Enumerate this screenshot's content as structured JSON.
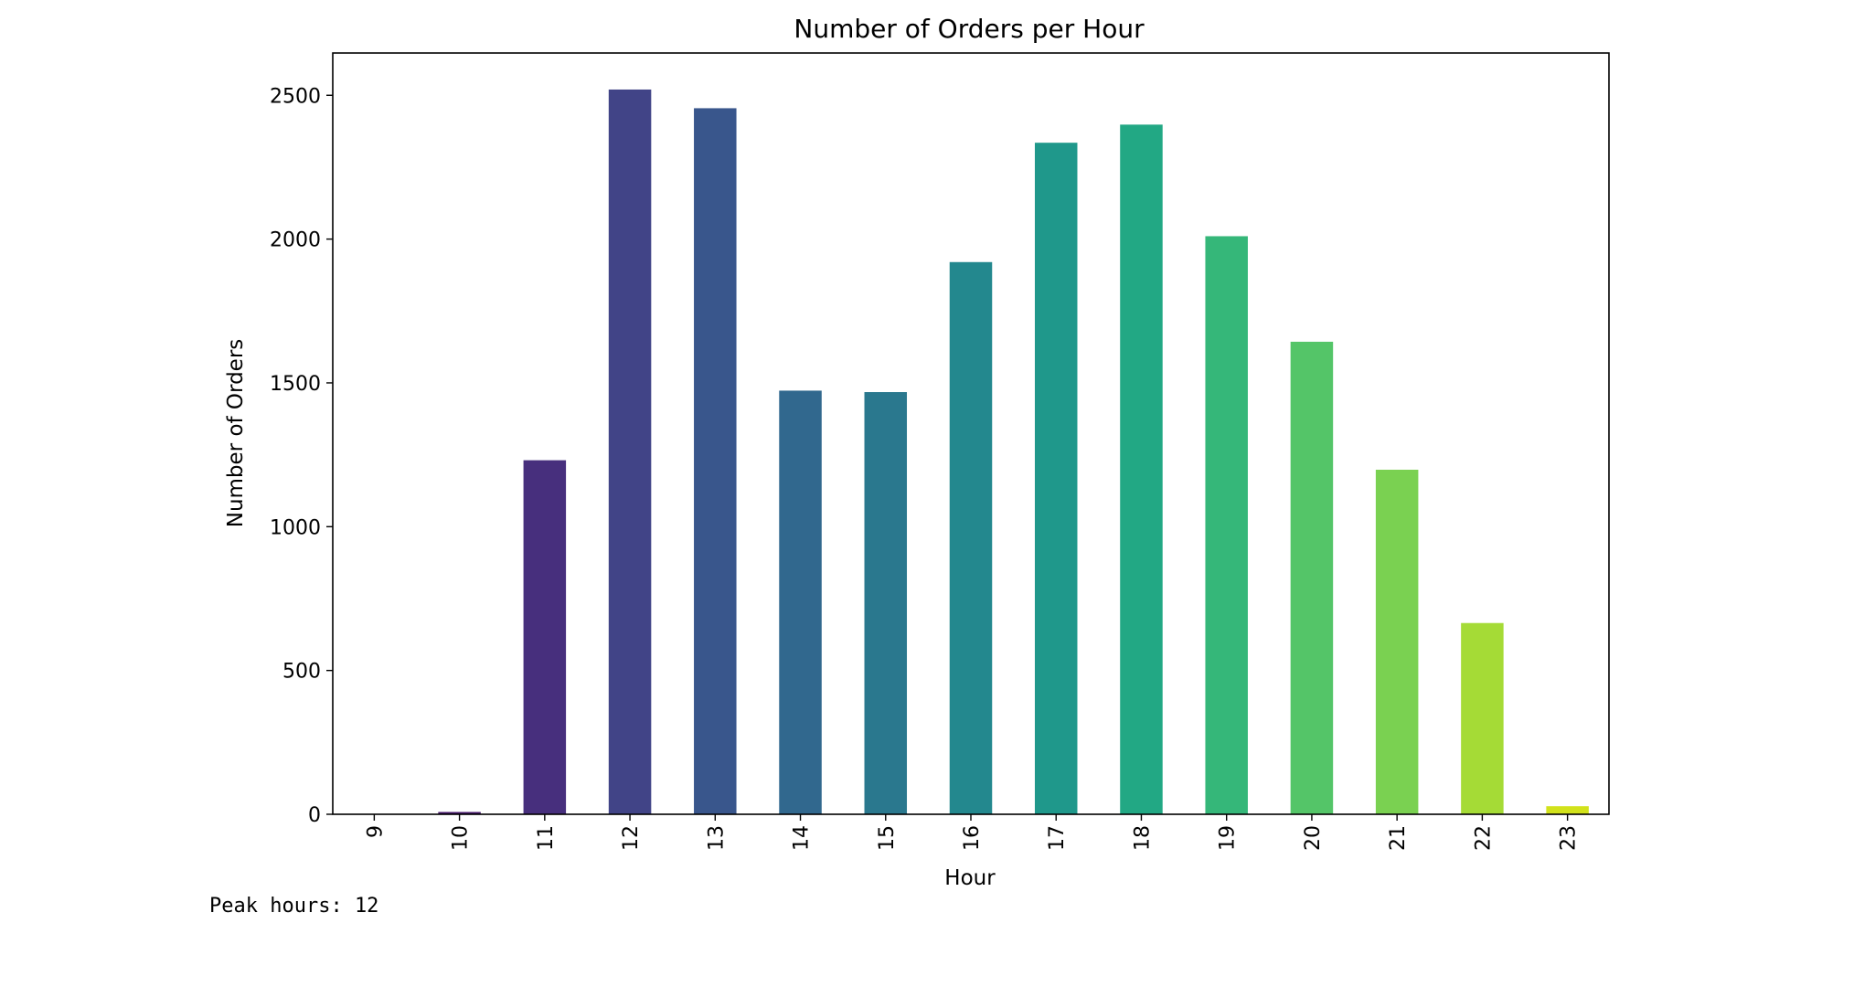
{
  "chart_data": {
    "type": "bar",
    "title": "Number of Orders per Hour",
    "xlabel": "Hour",
    "ylabel": "Number of Orders",
    "categories": [
      "9",
      "10",
      "11",
      "12",
      "13",
      "14",
      "15",
      "16",
      "17",
      "18",
      "19",
      "20",
      "21",
      "22",
      "23"
    ],
    "values": [
      1,
      8,
      1231,
      2520,
      2455,
      1473,
      1468,
      1920,
      2335,
      2398,
      2010,
      1643,
      1198,
      665,
      28
    ],
    "ylim": [
      0,
      2647
    ],
    "yticks": [
      0,
      500,
      1000,
      1500,
      2000,
      2500
    ],
    "grid": false,
    "legend": "none",
    "colormap": "viridis",
    "colors": [
      "#440154",
      "#481a6c",
      "#472f7d",
      "#414487",
      "#39568c",
      "#31688e",
      "#2a788e",
      "#23888e",
      "#1f988b",
      "#22a884",
      "#35b779",
      "#54c568",
      "#7ad151",
      "#a5db36",
      "#d2e21b"
    ]
  },
  "output": {
    "text": "Peak hours: 12"
  }
}
